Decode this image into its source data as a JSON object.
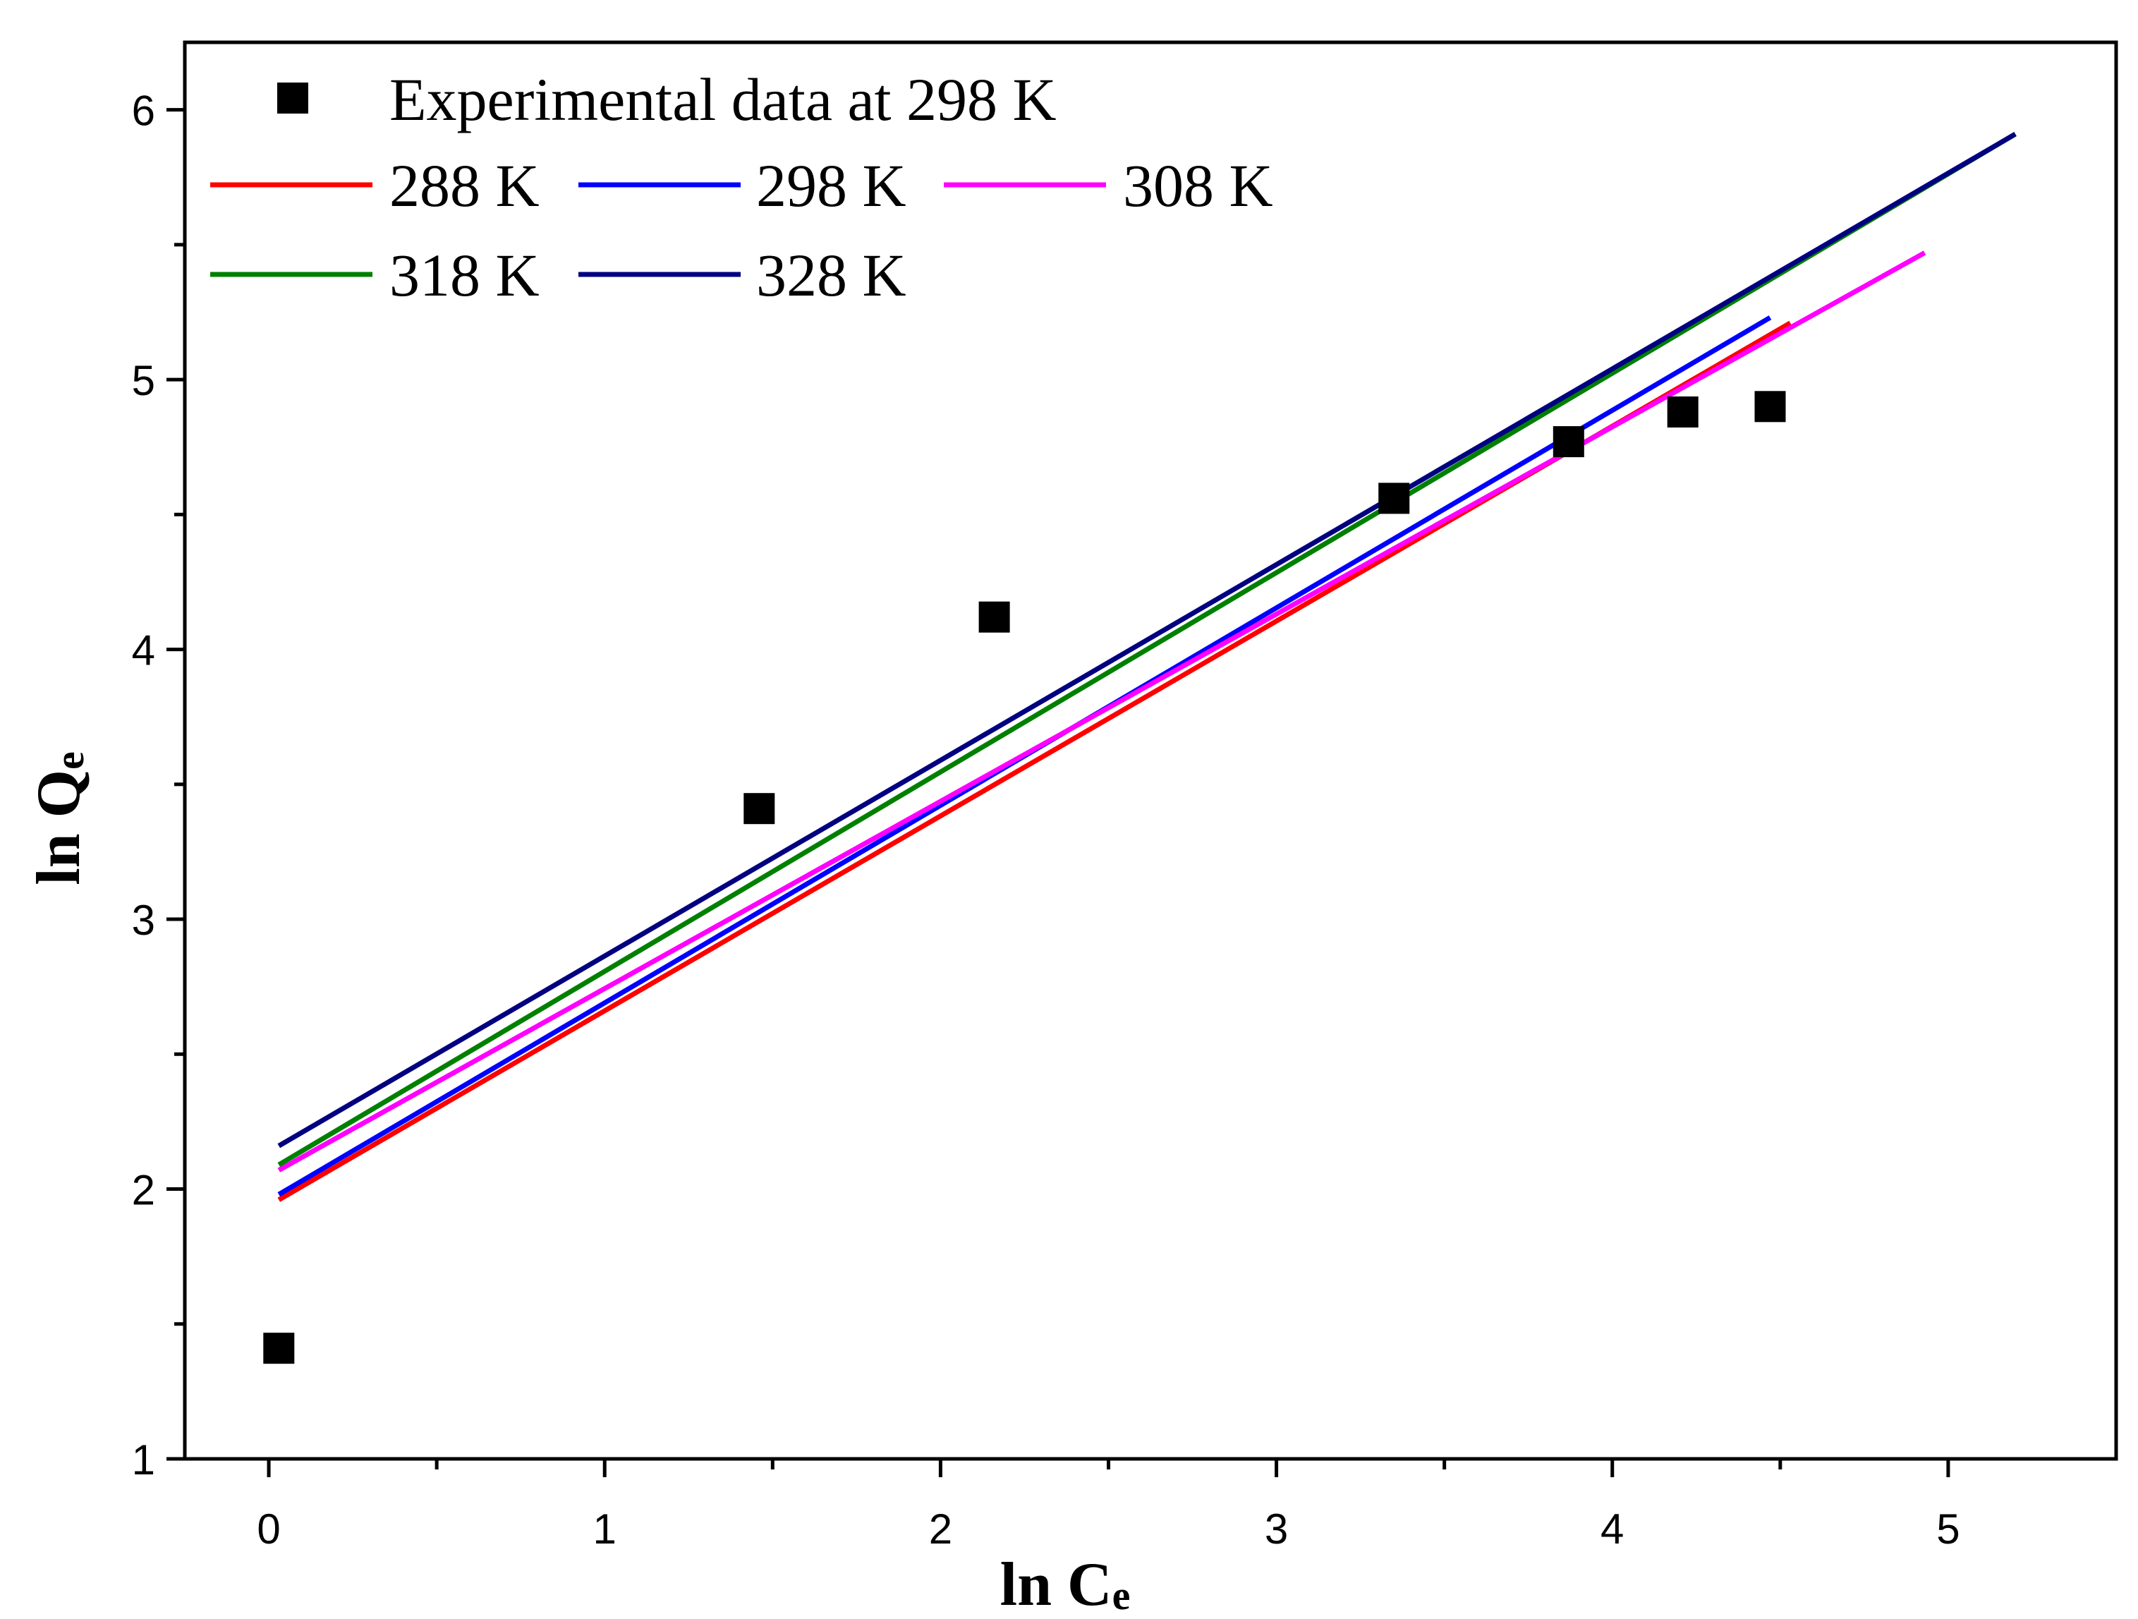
{
  "chart_data": {
    "type": "scatter",
    "title": "",
    "xlabel": "ln Ce",
    "ylabel": "ln Qe",
    "xlabel_main": "ln C",
    "xlabel_sub": "e",
    "ylabel_main": "ln Q",
    "ylabel_sub": "e",
    "xlim": [
      -0.25,
      5.5
    ],
    "ylim": [
      1,
      6.25
    ],
    "xticks": [
      0,
      1,
      2,
      3,
      4,
      5
    ],
    "yticks": [
      1,
      2,
      3,
      4,
      5,
      6
    ],
    "x_minor": 0.5,
    "y_minor": 0.5,
    "grid": false,
    "legend_position": "top-left",
    "scatter": {
      "name": "Experimental data at 298 K",
      "color": "#000000",
      "x": [
        0.03,
        1.46,
        2.16,
        3.35,
        3.87,
        4.21,
        4.47
      ],
      "y": [
        1.41,
        3.41,
        4.12,
        4.56,
        4.77,
        4.88,
        4.9
      ]
    },
    "series": [
      {
        "name": "288 K",
        "color": "#ff0000",
        "x": [
          0.03,
          4.53
        ],
        "y": [
          1.96,
          5.21
        ]
      },
      {
        "name": "298 K",
        "color": "#0000ff",
        "x": [
          0.03,
          4.47
        ],
        "y": [
          1.98,
          5.23
        ]
      },
      {
        "name": "308 K",
        "color": "#ff00ff",
        "x": [
          0.03,
          4.93
        ],
        "y": [
          2.07,
          5.47
        ]
      },
      {
        "name": "318 K",
        "color": "#008000",
        "x": [
          0.03,
          5.2
        ],
        "y": [
          2.09,
          5.91
        ]
      },
      {
        "name": "328 K",
        "color": "#000080",
        "x": [
          0.03,
          5.2
        ],
        "y": [
          2.16,
          5.91
        ]
      }
    ]
  }
}
